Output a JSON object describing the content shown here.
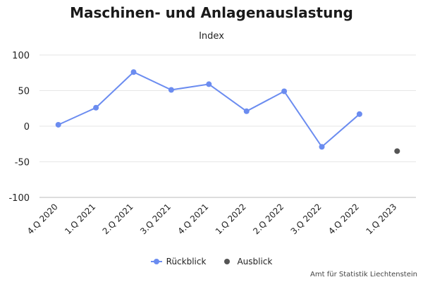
{
  "chart_data": {
    "type": "line",
    "title": "Maschinen- und Anlagenauslastung",
    "subtitle": "Index",
    "xlabel": "",
    "ylabel": "",
    "categories": [
      "4.Q 2020",
      "1.Q 2021",
      "2.Q 2021",
      "3.Q 2021",
      "4.Q 2021",
      "1.Q 2022",
      "2.Q 2022",
      "3.Q 2022",
      "4.Q 2022",
      "1.Q 2023"
    ],
    "ylim": [
      -100,
      100
    ],
    "yticks": [
      100,
      50,
      0,
      -50,
      -100
    ],
    "grid": true,
    "legend_position": "bottom",
    "series": [
      {
        "name": "Rückblick",
        "color": "#6b8cf0",
        "style": "line-markers",
        "values": [
          2,
          26,
          76,
          51,
          59,
          21,
          49,
          -29,
          17,
          null
        ]
      },
      {
        "name": "Ausblick",
        "color": "#555555",
        "style": "markers",
        "values": [
          null,
          null,
          null,
          null,
          null,
          null,
          null,
          null,
          null,
          -35
        ]
      }
    ]
  },
  "credit": "Amt für Statistik Liechtenstein"
}
